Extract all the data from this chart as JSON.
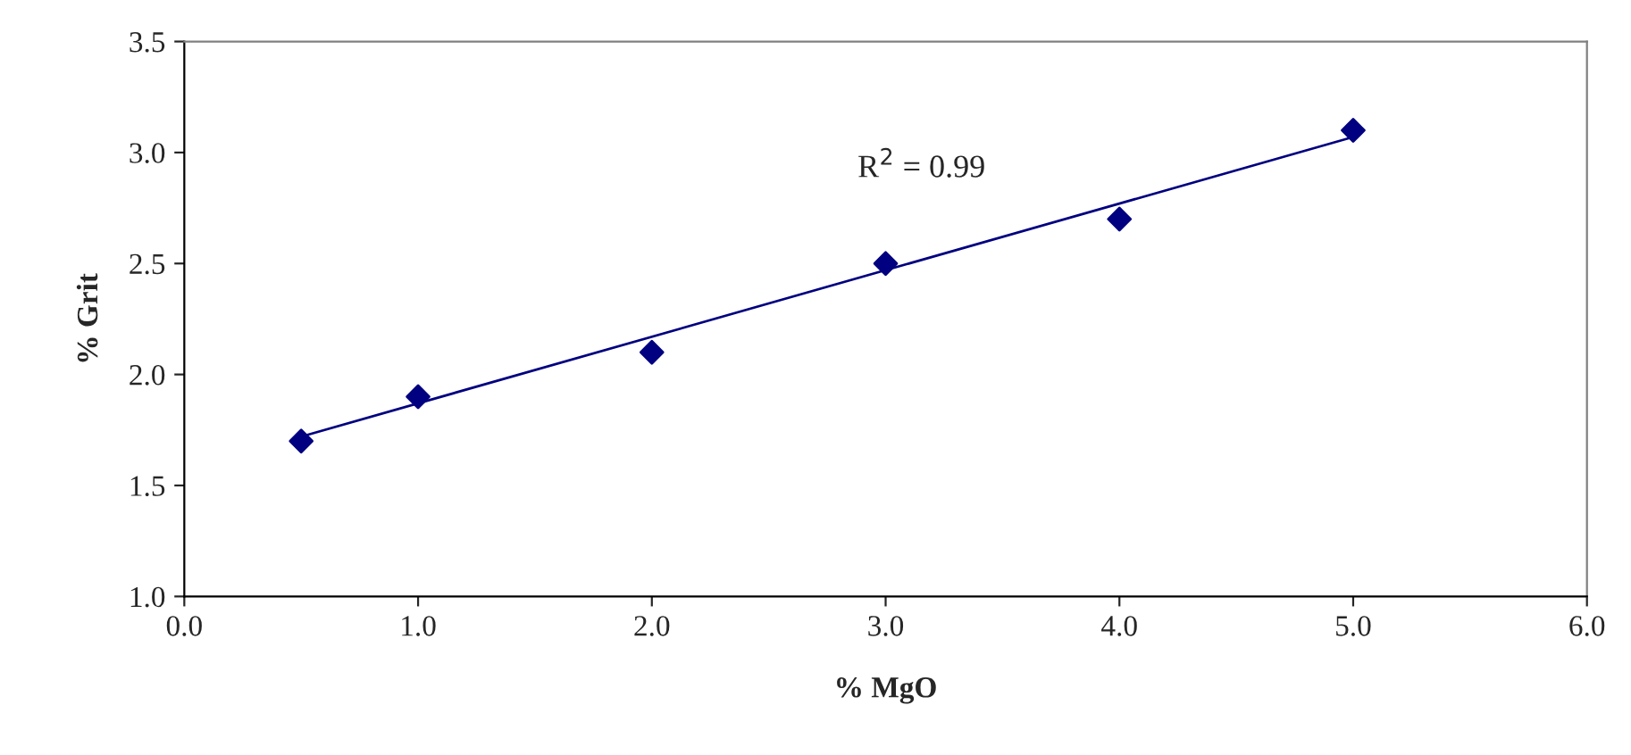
{
  "chart_data": {
    "type": "scatter",
    "xlabel": "% MgO",
    "ylabel": "% Grit",
    "xlim": [
      0.0,
      6.0
    ],
    "xticks": [
      {
        "value": 0,
        "label": "0.0"
      },
      {
        "value": 1,
        "label": "1.0"
      },
      {
        "value": 2,
        "label": "2.0"
      },
      {
        "value": 3,
        "label": "3.0"
      },
      {
        "value": 4,
        "label": "4.0"
      },
      {
        "value": 5,
        "label": "5.0"
      },
      {
        "value": 6,
        "label": "6.0"
      }
    ],
    "ylim": [
      1.0,
      3.5
    ],
    "yticks": [
      {
        "value": 1,
        "label": "1.0"
      },
      {
        "value": 1.5,
        "label": "1.5"
      },
      {
        "value": 2,
        "label": "2.0"
      },
      {
        "value": 2.5,
        "label": "2.5"
      },
      {
        "value": 3,
        "label": "3.0"
      },
      {
        "value": 3.5,
        "label": "3.5"
      }
    ],
    "grid": false,
    "legend": false,
    "annotations": [
      "R$^{2}$ = 0.99"
    ],
    "series": [
      {
        "marker": "diamond",
        "color": "#000080",
        "x": [
          0.5,
          1,
          2,
          3,
          4,
          5
        ],
        "values": [
          1.7,
          1.9,
          2.1,
          2.5,
          2.7,
          3.1
        ]
      },
      {
        "type": "line",
        "marker": "none",
        "line_style": "solid",
        "color": "#000080",
        "x": [
          0.5,
          5
        ],
        "values": [
          1.72,
          3.07
        ]
      }
    ]
  }
}
